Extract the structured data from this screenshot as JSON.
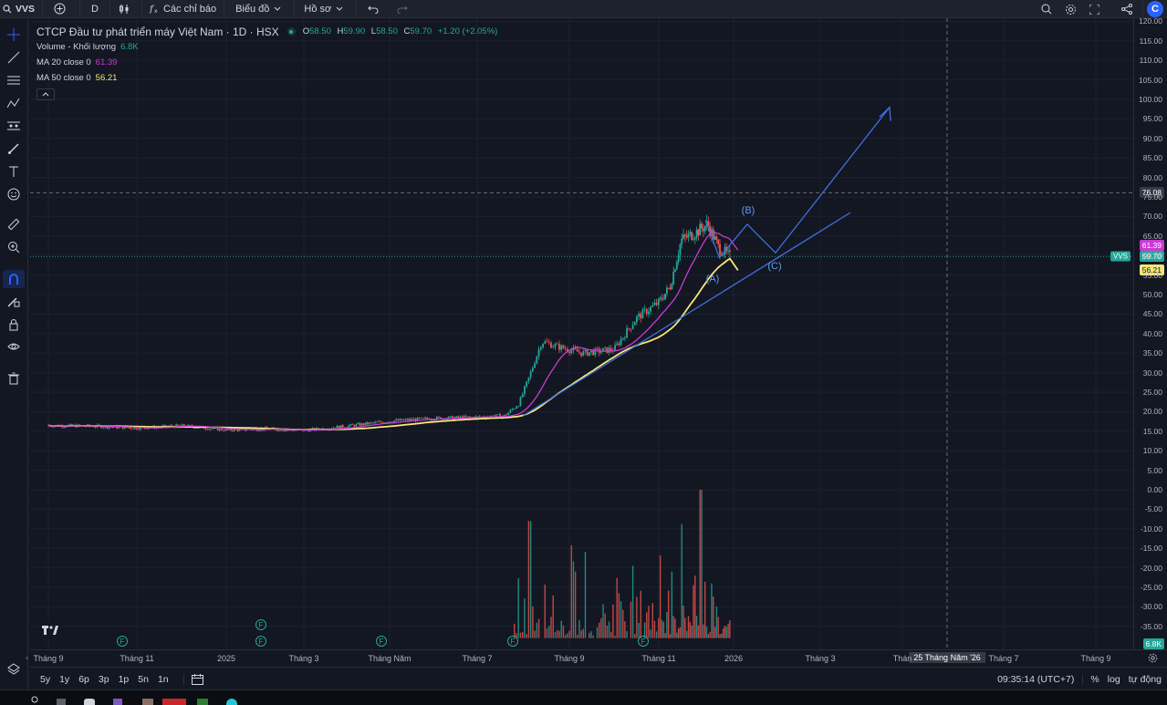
{
  "toolbar": {
    "symbol": "VVS",
    "interval": "D",
    "indicators_label": "Các chỉ báo",
    "chart_menu_label": "Biểu đồ",
    "profile_label": "Hồ sơ"
  },
  "legend": {
    "title": "CTCP Đầu tư phát triển máy Việt Nam · 1D · HSX",
    "open_label": "O",
    "open": "58.50",
    "high_label": "H",
    "high": "59.90",
    "low_label": "L",
    "low": "58.50",
    "close_label": "C",
    "close": "59.70",
    "change": "+1.20 (+2.05%)",
    "volume_label": "Volume - Khối lượng",
    "volume_value": "6.8K",
    "ma20_label": "MA 20 close 0",
    "ma20_value": "61.39",
    "ma50_label": "MA 50 close 0",
    "ma50_value": "56.21"
  },
  "wave_labels": {
    "a": "(A)",
    "b": "(B)",
    "c": "(C)"
  },
  "earnings_marker": "F",
  "price_axis": {
    "ticks": [
      "120.00",
      "115.00",
      "110.00",
      "105.00",
      "100.00",
      "95.00",
      "90.00",
      "85.00",
      "80.00",
      "75.00",
      "70.00",
      "65.00",
      "60.00",
      "55.00",
      "50.00",
      "45.00",
      "40.00",
      "35.00",
      "30.00",
      "25.00",
      "20.00",
      "15.00",
      "10.00",
      "5.00",
      "0.00",
      "-5.00",
      "-10.00",
      "-15.00",
      "-20.00",
      "-25.00",
      "-30.00",
      "-35.00"
    ],
    "crosshair_value": "76.08",
    "ma20_badge": "61.39",
    "symbol_badge_label": "VVS",
    "last_price_badge": "59.70",
    "ma50_badge": "56.21",
    "volume_badge": "6.8K"
  },
  "time_axis": {
    "labels": [
      "Tháng 9",
      "Tháng 11",
      "2025",
      "Tháng 3",
      "Tháng Năm",
      "Tháng 7",
      "Tháng 9",
      "Tháng 11",
      "2026",
      "Tháng 3",
      "Thán",
      "Tháng 7",
      "Tháng 9"
    ],
    "crosshair_date": "25 Tháng Năm '26"
  },
  "bottom": {
    "ranges": [
      "5y",
      "1y",
      "6p",
      "3p",
      "1p",
      "5n",
      "1n"
    ],
    "clock": "09:35:14 (UTC+7)",
    "percent_label": "%",
    "log_label": "log",
    "auto_label": "tự động"
  },
  "colors": {
    "background": "#131722",
    "up": "#26a69a",
    "down": "#ef5350",
    "ma20": "#c83bd3",
    "ma50": "#f5e77a",
    "trendline": "#2962ff",
    "accent": "#2962ff"
  },
  "chart_data": {
    "type": "candlestick",
    "symbol": "VVS",
    "interval": "1D",
    "ylim": [
      -38,
      121
    ],
    "last": {
      "open": 58.5,
      "high": 59.9,
      "low": 58.5,
      "close": 59.7,
      "change": 1.2,
      "change_pct": 2.05
    },
    "volume_last": "6.8K",
    "ma20_last": 61.39,
    "ma50_last": 56.21,
    "price_path": [
      {
        "month": "2024-09",
        "close": 16.5
      },
      {
        "month": "2024-11",
        "close": 16.0
      },
      {
        "month": "2025-01",
        "close": 15.5
      },
      {
        "month": "2025-03",
        "close": 15.5
      },
      {
        "month": "2025-05",
        "close": 18.0
      },
      {
        "month": "2025-07",
        "close": 19.0
      },
      {
        "month": "2025-08",
        "close": 38.0
      },
      {
        "month": "2025-09",
        "close": 36.0
      },
      {
        "month": "2025-10",
        "close": 52.0
      },
      {
        "month": "2025-11",
        "close": 68.0
      },
      {
        "month": "2025-12",
        "close": 59.7
      }
    ],
    "volume_bars": [
      {
        "month": "2025-08",
        "volume_scale_value": -8
      },
      {
        "month": "2025-10",
        "volume_scale_value": -8
      },
      {
        "month": "2025-11",
        "volume_scale_value": 0
      }
    ]
  }
}
